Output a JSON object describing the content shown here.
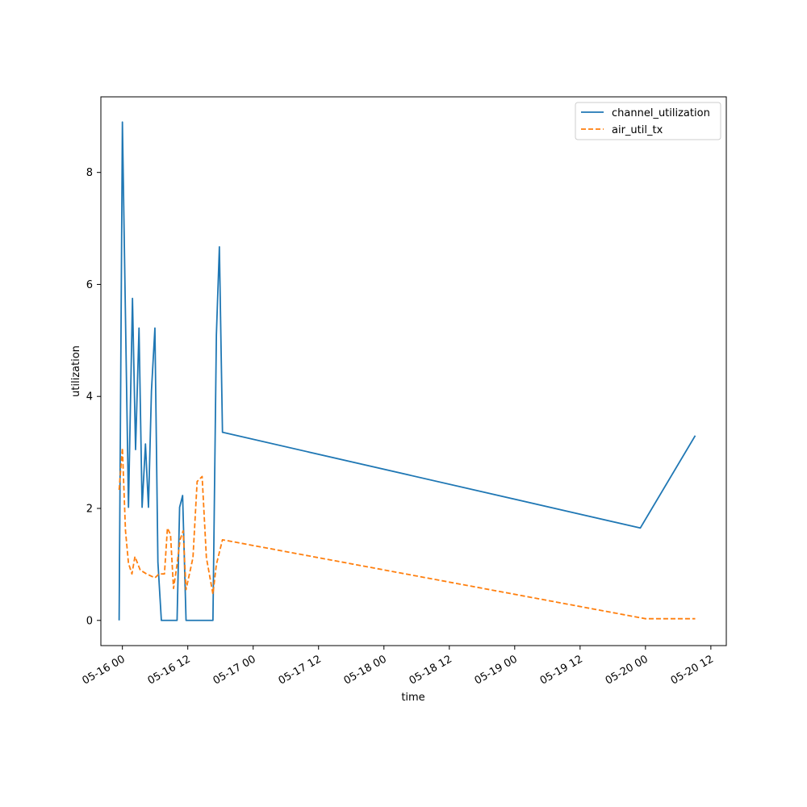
{
  "chart_data": {
    "type": "line",
    "title": "",
    "xlabel": "time",
    "ylabel": "utilization",
    "xlim": [
      "2025-05-15T20:03",
      "2025-05-20T14:50"
    ],
    "ylim": [
      -0.45,
      9.35
    ],
    "yticks": [
      0,
      2,
      4,
      6,
      8
    ],
    "ytick_labels": [
      "0",
      "2",
      "4",
      "6",
      "8"
    ],
    "xticks": [
      "2025-05-16T00:00",
      "2025-05-16T12:00",
      "2025-05-17T00:00",
      "2025-05-17T12:00",
      "2025-05-18T00:00",
      "2025-05-18T12:00",
      "2025-05-19T00:00",
      "2025-05-19T12:00",
      "2025-05-20T00:00",
      "2025-05-20T12:00"
    ],
    "xtick_labels": [
      "05-16 00",
      "05-16 12",
      "05-17 00",
      "05-17 12",
      "05-18 00",
      "05-18 12",
      "05-19 00",
      "05-19 12",
      "05-20 00",
      "05-20 12"
    ],
    "legend_position": "top-right",
    "grid": false,
    "series": [
      {
        "name": "channel_utilization",
        "color": "#1f77b4",
        "style": "solid",
        "points": [
          {
            "x": "2025-05-15T23:24",
            "y": 0.0
          },
          {
            "x": "2025-05-16T00:00",
            "y": 8.9
          },
          {
            "x": "2025-05-16T01:07",
            "y": 2.02
          },
          {
            "x": "2025-05-16T01:51",
            "y": 5.75
          },
          {
            "x": "2025-05-16T02:25",
            "y": 3.05
          },
          {
            "x": "2025-05-16T03:03",
            "y": 5.22
          },
          {
            "x": "2025-05-16T03:37",
            "y": 2.02
          },
          {
            "x": "2025-05-16T04:14",
            "y": 3.15
          },
          {
            "x": "2025-05-16T04:47",
            "y": 2.02
          },
          {
            "x": "2025-05-16T05:20",
            "y": 4.1
          },
          {
            "x": "2025-05-16T05:58",
            "y": 5.22
          },
          {
            "x": "2025-05-16T06:31",
            "y": 1.04
          },
          {
            "x": "2025-05-16T07:09",
            "y": 0.0
          },
          {
            "x": "2025-05-16T10:02",
            "y": 0.0
          },
          {
            "x": "2025-05-16T10:30",
            "y": 2.02
          },
          {
            "x": "2025-05-16T11:03",
            "y": 2.23
          },
          {
            "x": "2025-05-16T11:41",
            "y": 0.0
          },
          {
            "x": "2025-05-16T16:37",
            "y": 0.0
          },
          {
            "x": "2025-05-16T17:15",
            "y": 5.1
          },
          {
            "x": "2025-05-16T17:48",
            "y": 6.67
          },
          {
            "x": "2025-05-16T18:22",
            "y": 3.36
          },
          {
            "x": "2025-05-19T23:03",
            "y": 1.65
          },
          {
            "x": "2025-05-20T09:08",
            "y": 3.3
          }
        ]
      },
      {
        "name": "air_util_tx",
        "color": "#ff7f0e",
        "style": "dashed",
        "points": [
          {
            "x": "2025-05-15T23:24",
            "y": 2.33
          },
          {
            "x": "2025-05-16T00:00",
            "y": 3.08
          },
          {
            "x": "2025-05-16T00:34",
            "y": 1.6
          },
          {
            "x": "2025-05-16T01:07",
            "y": 1.02
          },
          {
            "x": "2025-05-16T01:45",
            "y": 0.83
          },
          {
            "x": "2025-05-16T02:18",
            "y": 1.14
          },
          {
            "x": "2025-05-16T03:16",
            "y": 0.9
          },
          {
            "x": "2025-05-16T04:26",
            "y": 0.83
          },
          {
            "x": "2025-05-16T05:58",
            "y": 0.76
          },
          {
            "x": "2025-05-16T06:43",
            "y": 0.83
          },
          {
            "x": "2025-05-16T07:43",
            "y": 0.83
          },
          {
            "x": "2025-05-16T08:16",
            "y": 1.65
          },
          {
            "x": "2025-05-16T08:50",
            "y": 1.53
          },
          {
            "x": "2025-05-16T09:23",
            "y": 0.57
          },
          {
            "x": "2025-05-16T10:02",
            "y": 1.0
          },
          {
            "x": "2025-05-16T10:35",
            "y": 1.44
          },
          {
            "x": "2025-05-16T11:09",
            "y": 1.6
          },
          {
            "x": "2025-05-16T11:41",
            "y": 0.55
          },
          {
            "x": "2025-05-16T12:57",
            "y": 1.12
          },
          {
            "x": "2025-05-16T13:43",
            "y": 2.48
          },
          {
            "x": "2025-05-16T14:38",
            "y": 2.57
          },
          {
            "x": "2025-05-16T15:25",
            "y": 1.12
          },
          {
            "x": "2025-05-16T16:37",
            "y": 0.47
          },
          {
            "x": "2025-05-16T17:15",
            "y": 1.0
          },
          {
            "x": "2025-05-16T18:22",
            "y": 1.44
          },
          {
            "x": "2025-05-20T00:00",
            "y": 0.03
          },
          {
            "x": "2025-05-20T09:08",
            "y": 0.03
          }
        ]
      }
    ]
  }
}
